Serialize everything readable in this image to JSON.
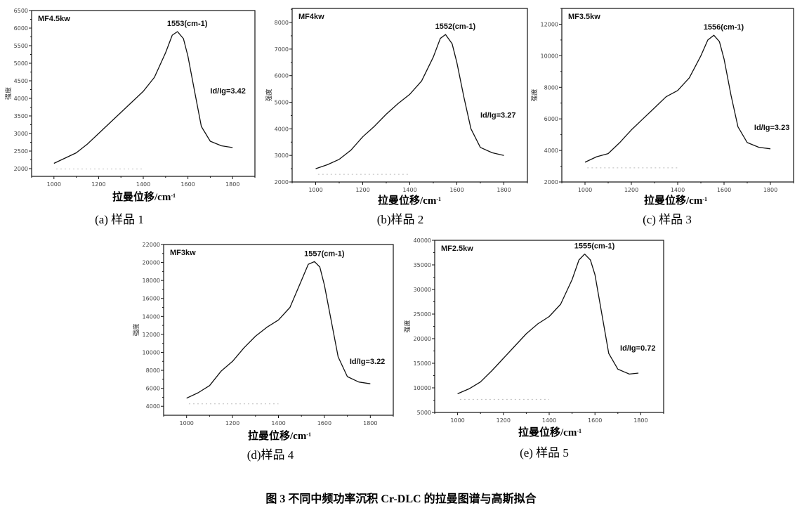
{
  "figure_caption": "图 3   不同中频功率沉积 Cr-DLC 的拉曼图谱与高斯拟合",
  "chart_data": [
    {
      "type": "line",
      "panel": "a",
      "caption": "(a)  样品 1",
      "title": "MF4.5kw",
      "xlabel": "拉曼位移/cm-1",
      "ylabel": "强度",
      "xlim": [
        900,
        1900
      ],
      "ylim": [
        1780,
        6500
      ],
      "xticks": [
        1000,
        1200,
        1400,
        1600,
        1800
      ],
      "yticks": [
        2000,
        2500,
        3000,
        3500,
        4000,
        4500,
        5000,
        5500,
        6000,
        6500
      ],
      "peak_label": "1553(cm-1)",
      "peak_x": 1553,
      "ratio_label": "Id/Ig=3.42",
      "x": [
        1000,
        1050,
        1100,
        1150,
        1200,
        1250,
        1300,
        1350,
        1400,
        1450,
        1500,
        1530,
        1553,
        1580,
        1600,
        1630,
        1660,
        1700,
        1750,
        1800
      ],
      "y": [
        2150,
        2300,
        2450,
        2700,
        3000,
        3300,
        3600,
        3900,
        4200,
        4600,
        5300,
        5800,
        5900,
        5700,
        5200,
        4200,
        3200,
        2780,
        2650,
        2600
      ]
    },
    {
      "type": "line",
      "panel": "b",
      "caption": "(b)样品 2",
      "title": "MF4kw",
      "xlabel": "拉曼位移/cm-1",
      "ylabel": "强度",
      "xlim": [
        900,
        1900
      ],
      "ylim": [
        2000,
        8530
      ],
      "xticks": [
        1000,
        1200,
        1400,
        1600,
        1800
      ],
      "yticks": [
        2000,
        3000,
        4000,
        5000,
        6000,
        7000,
        8000
      ],
      "peak_label": "1552(cm-1)",
      "peak_x": 1552,
      "ratio_label": "Id/Ig=3.27",
      "x": [
        1000,
        1050,
        1100,
        1150,
        1200,
        1250,
        1300,
        1350,
        1400,
        1450,
        1500,
        1530,
        1552,
        1580,
        1600,
        1630,
        1660,
        1700,
        1750,
        1800
      ],
      "y": [
        2500,
        2650,
        2850,
        3200,
        3700,
        4100,
        4550,
        4950,
        5300,
        5800,
        6700,
        7400,
        7550,
        7200,
        6500,
        5200,
        4000,
        3300,
        3100,
        3000
      ]
    },
    {
      "type": "line",
      "panel": "c",
      "caption": "(c)  样品 3",
      "title": "MF3.5kw",
      "xlabel": "拉曼位移/cm-1",
      "ylabel": "强度",
      "xlim": [
        900,
        1900
      ],
      "ylim": [
        2000,
        13000
      ],
      "xticks": [
        1000,
        1200,
        1400,
        1600,
        1800
      ],
      "yticks": [
        2000,
        4000,
        6000,
        8000,
        10000,
        12000
      ],
      "peak_label": "1556(cm-1)",
      "peak_x": 1556,
      "ratio_label": "Id/Ig=3.23",
      "x": [
        1000,
        1050,
        1100,
        1150,
        1200,
        1250,
        1300,
        1350,
        1400,
        1450,
        1500,
        1530,
        1556,
        1580,
        1600,
        1630,
        1660,
        1700,
        1750,
        1800
      ],
      "y": [
        3250,
        3600,
        3800,
        4500,
        5300,
        6000,
        6700,
        7400,
        7800,
        8600,
        10000,
        11000,
        11300,
        10900,
        9800,
        7500,
        5500,
        4500,
        4200,
        4100
      ]
    },
    {
      "type": "line",
      "panel": "d",
      "caption": "(d)样品 4",
      "title": "MF3kw",
      "xlabel": "拉曼位移/cm-1",
      "ylabel": "强度",
      "xlim": [
        900,
        1900
      ],
      "ylim": [
        3000,
        22000
      ],
      "xticks": [
        1000,
        1200,
        1400,
        1600,
        1800
      ],
      "yticks": [
        4000,
        6000,
        8000,
        10000,
        12000,
        14000,
        16000,
        18000,
        20000,
        22000
      ],
      "peak_label": "1557(cm-1)",
      "peak_x": 1557,
      "ratio_label": "Id/Ig=3.22",
      "x": [
        1000,
        1050,
        1100,
        1150,
        1200,
        1250,
        1300,
        1350,
        1400,
        1450,
        1500,
        1530,
        1557,
        1580,
        1600,
        1630,
        1660,
        1700,
        1750,
        1800
      ],
      "y": [
        4900,
        5500,
        6300,
        7900,
        9000,
        10500,
        11800,
        12800,
        13600,
        15000,
        18000,
        19800,
        20100,
        19500,
        17500,
        13500,
        9500,
        7300,
        6700,
        6500
      ]
    },
    {
      "type": "line",
      "panel": "e",
      "caption": "(e)  样品 5",
      "title": "MF2.5kw",
      "xlabel": "拉曼位移/cm-1",
      "ylabel": "强度",
      "xlim": [
        900,
        1900
      ],
      "ylim": [
        5000,
        40000
      ],
      "xticks": [
        1000,
        1200,
        1400,
        1600,
        1800
      ],
      "yticks": [
        5000,
        10000,
        15000,
        20000,
        25000,
        30000,
        35000,
        40000
      ],
      "peak_label": "1555(cm-1)",
      "peak_x": 1555,
      "ratio_label": "Id/Ig=0.72",
      "x": [
        1000,
        1050,
        1100,
        1150,
        1200,
        1250,
        1300,
        1350,
        1400,
        1450,
        1500,
        1530,
        1555,
        1580,
        1600,
        1630,
        1660,
        1700,
        1750,
        1790
      ],
      "y": [
        8800,
        9800,
        11200,
        13500,
        16000,
        18500,
        21000,
        23000,
        24500,
        27000,
        32000,
        36000,
        37200,
        36000,
        33000,
        25000,
        17000,
        13800,
        12800,
        13000
      ]
    }
  ]
}
